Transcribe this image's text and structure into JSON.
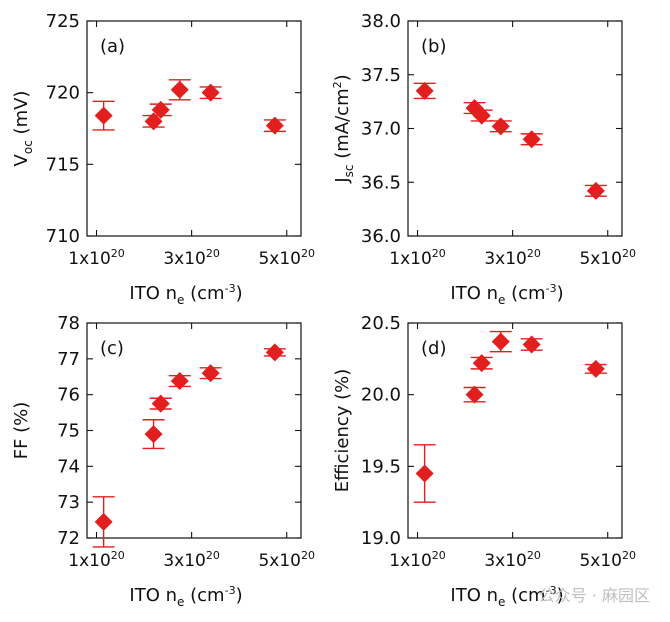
{
  "watermark": {
    "text": "公众号 · 麻园区"
  },
  "chart_data": [
    {
      "type": "scatter",
      "panel_label": "(a)",
      "xlabel_main": "ITO n",
      "xlabel_sub": "e",
      "xlabel_unit": " (cm",
      "xlabel_exp": "-3",
      "xlabel_close": ")",
      "ylabel_main": "V",
      "ylabel_sub": "oc",
      "ylabel_unit": " (mV)",
      "ylabel_exp": "",
      "ylabel_close": "",
      "xlim": [
        8e+19,
        5.3e+20
      ],
      "ylim": [
        710,
        725
      ],
      "x_ticks": [
        {
          "value": 1e+20,
          "mant": "1x10",
          "exp": "20"
        },
        {
          "value": 3e+20,
          "mant": "3x10",
          "exp": "20"
        },
        {
          "value": 5e+20,
          "mant": "5x10",
          "exp": "20"
        }
      ],
      "y_ticks": [
        {
          "value": 710,
          "label": "710"
        },
        {
          "value": 715,
          "label": "715"
        },
        {
          "value": 720,
          "label": "720"
        },
        {
          "value": 725,
          "label": "725"
        }
      ],
      "points": [
        {
          "x": 1.15e+20,
          "y": 718.4,
          "err": 1.0
        },
        {
          "x": 2.2e+20,
          "y": 718.0,
          "err": 0.4
        },
        {
          "x": 2.35e+20,
          "y": 718.8,
          "err": 0.4
        },
        {
          "x": 2.75e+20,
          "y": 720.2,
          "err": 0.7
        },
        {
          "x": 3.4e+20,
          "y": 720.0,
          "err": 0.4
        },
        {
          "x": 4.75e+20,
          "y": 717.7,
          "err": 0.4
        }
      ],
      "color": "#e31e1e"
    },
    {
      "type": "scatter",
      "panel_label": "(b)",
      "xlabel_main": "ITO n",
      "xlabel_sub": "e",
      "xlabel_unit": " (cm",
      "xlabel_exp": "-3",
      "xlabel_close": ")",
      "ylabel_main": "J",
      "ylabel_sub": "sc",
      "ylabel_unit": " (mA/cm",
      "ylabel_exp": "2",
      "ylabel_close": ")",
      "xlim": [
        8e+19,
        5.3e+20
      ],
      "ylim": [
        36.0,
        38.0
      ],
      "x_ticks": [
        {
          "value": 1e+20,
          "mant": "1x10",
          "exp": "20"
        },
        {
          "value": 3e+20,
          "mant": "3x10",
          "exp": "20"
        },
        {
          "value": 5e+20,
          "mant": "5x10",
          "exp": "20"
        }
      ],
      "y_ticks": [
        {
          "value": 36.0,
          "label": "36.0"
        },
        {
          "value": 36.5,
          "label": "36.5"
        },
        {
          "value": 37.0,
          "label": "37.0"
        },
        {
          "value": 37.5,
          "label": "37.5"
        },
        {
          "value": 38.0,
          "label": "38.0"
        }
      ],
      "points": [
        {
          "x": 1.15e+20,
          "y": 37.35,
          "err": 0.07
        },
        {
          "x": 2.2e+20,
          "y": 37.19,
          "err": 0.05
        },
        {
          "x": 2.35e+20,
          "y": 37.12,
          "err": 0.05
        },
        {
          "x": 2.75e+20,
          "y": 37.02,
          "err": 0.05
        },
        {
          "x": 3.4e+20,
          "y": 36.9,
          "err": 0.05
        },
        {
          "x": 4.75e+20,
          "y": 36.42,
          "err": 0.05
        }
      ],
      "color": "#e31e1e"
    },
    {
      "type": "scatter",
      "panel_label": "(c)",
      "xlabel_main": "ITO n",
      "xlabel_sub": "e",
      "xlabel_unit": " (cm",
      "xlabel_exp": "-3",
      "xlabel_close": ")",
      "ylabel_main": "FF (%)",
      "ylabel_sub": "",
      "ylabel_unit": "",
      "ylabel_exp": "",
      "ylabel_close": "",
      "xlim": [
        8e+19,
        5.3e+20
      ],
      "ylim": [
        72,
        78
      ],
      "x_ticks": [
        {
          "value": 1e+20,
          "mant": "1x10",
          "exp": "20"
        },
        {
          "value": 3e+20,
          "mant": "3x10",
          "exp": "20"
        },
        {
          "value": 5e+20,
          "mant": "5x10",
          "exp": "20"
        }
      ],
      "y_ticks": [
        {
          "value": 72,
          "label": "72"
        },
        {
          "value": 73,
          "label": "73"
        },
        {
          "value": 74,
          "label": "74"
        },
        {
          "value": 75,
          "label": "75"
        },
        {
          "value": 76,
          "label": "76"
        },
        {
          "value": 77,
          "label": "77"
        },
        {
          "value": 78,
          "label": "78"
        }
      ],
      "points": [
        {
          "x": 1.15e+20,
          "y": 72.45,
          "err": 0.7
        },
        {
          "x": 2.2e+20,
          "y": 74.9,
          "err": 0.4
        },
        {
          "x": 2.35e+20,
          "y": 75.75,
          "err": 0.15
        },
        {
          "x": 2.75e+20,
          "y": 76.38,
          "err": 0.15
        },
        {
          "x": 3.4e+20,
          "y": 76.6,
          "err": 0.15
        },
        {
          "x": 4.75e+20,
          "y": 77.18,
          "err": 0.1
        }
      ],
      "color": "#e31e1e"
    },
    {
      "type": "scatter",
      "panel_label": "(d)",
      "xlabel_main": "ITO n",
      "xlabel_sub": "e",
      "xlabel_unit": " (cm",
      "xlabel_exp": "-3",
      "xlabel_close": ")",
      "ylabel_main": "Efficiency (%)",
      "ylabel_sub": "",
      "ylabel_unit": "",
      "ylabel_exp": "",
      "ylabel_close": "",
      "xlim": [
        8e+19,
        5.3e+20
      ],
      "ylim": [
        19.0,
        20.5
      ],
      "x_ticks": [
        {
          "value": 1e+20,
          "mant": "1x10",
          "exp": "20"
        },
        {
          "value": 3e+20,
          "mant": "3x10",
          "exp": "20"
        },
        {
          "value": 5e+20,
          "mant": "5x10",
          "exp": "20"
        }
      ],
      "y_ticks": [
        {
          "value": 19.0,
          "label": "19.0"
        },
        {
          "value": 19.5,
          "label": "19.5"
        },
        {
          "value": 20.0,
          "label": "20.0"
        },
        {
          "value": 20.5,
          "label": "20.5"
        }
      ],
      "points": [
        {
          "x": 1.15e+20,
          "y": 19.45,
          "err": 0.2
        },
        {
          "x": 2.2e+20,
          "y": 20.0,
          "err": 0.05
        },
        {
          "x": 2.35e+20,
          "y": 20.22,
          "err": 0.04
        },
        {
          "x": 2.75e+20,
          "y": 20.37,
          "err": 0.07
        },
        {
          "x": 3.4e+20,
          "y": 20.35,
          "err": 0.04
        },
        {
          "x": 4.75e+20,
          "y": 20.18,
          "err": 0.03
        }
      ],
      "color": "#e31e1e"
    }
  ]
}
